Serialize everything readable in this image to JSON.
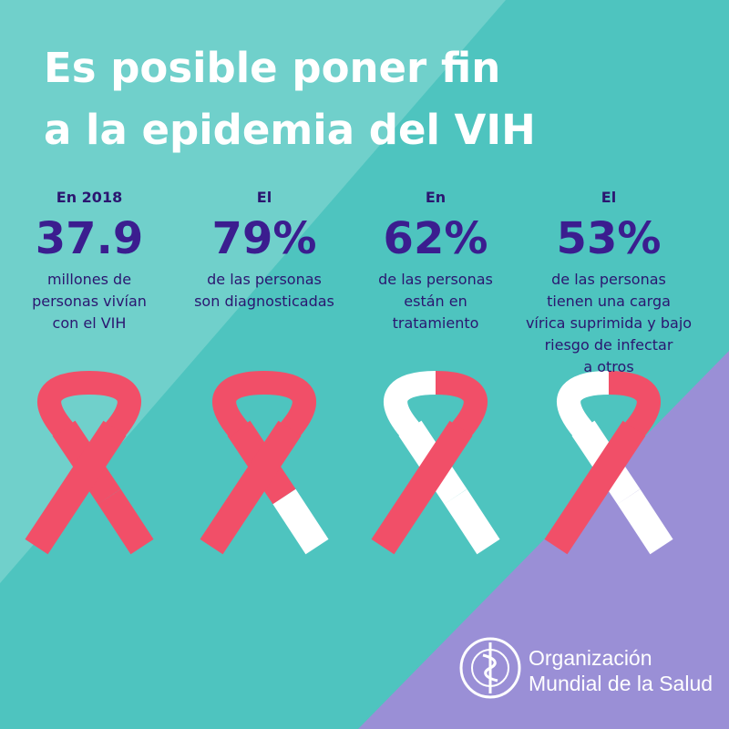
{
  "title": {
    "lines": [
      "Es posible poner fin",
      "a la epidemia del VIH"
    ]
  },
  "stats": [
    {
      "intro": "En 2018",
      "figure": "37.9",
      "description": [
        "millones de",
        "personas vivían",
        "con el VIH"
      ]
    },
    {
      "intro": "El",
      "figure": "79%",
      "description": [
        "de las personas",
        "son diagnosticadas"
      ]
    },
    {
      "intro": "En",
      "figure": "62%",
      "description": [
        "de las personas",
        "están en",
        "tratamiento"
      ]
    },
    {
      "intro": "El",
      "figure": "53%",
      "description": [
        "de las personas",
        "tienen una carga",
        "vírica suprimida y bajo",
        "riesgo de infectar",
        "a otros"
      ]
    }
  ],
  "logo": {
    "lines": [
      "Organización",
      "Mundial de la Salud"
    ]
  }
}
